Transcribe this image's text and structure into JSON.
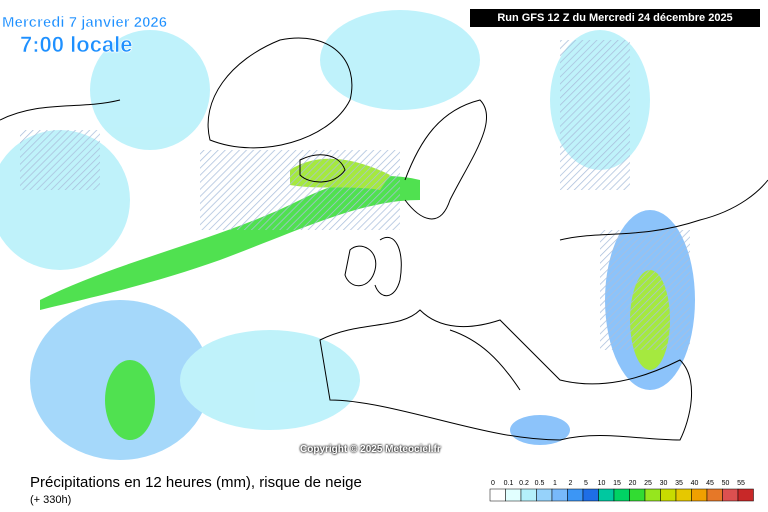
{
  "header": {
    "date": "Mercredi 7 janvier 2026",
    "time": "7:00 locale",
    "run": "Run GFS 12 Z du Mercredi 24 décembre 2025"
  },
  "copyright": "Copyright © 2025 Meteociel.fr",
  "footer": {
    "title": "Précipitations en 12 heures (mm), risque de neige",
    "lead": "(+ 330h)"
  },
  "legend": {
    "labels": [
      "0",
      "0.1",
      "0.2",
      "0.5",
      "1",
      "2",
      "5",
      "10",
      "15",
      "20",
      "25",
      "30",
      "35",
      "40",
      "45",
      "50",
      "55"
    ],
    "colors": [
      "#ffffff",
      "#e1ffff",
      "#b4f0fa",
      "#96d2fa",
      "#78b9fa",
      "#3c96f5",
      "#1e6ee6",
      "#00c8a0",
      "#00d264",
      "#32dc32",
      "#96e61e",
      "#c8dc00",
      "#e6c800",
      "#f0a000",
      "#e67828",
      "#dc5050",
      "#c82828"
    ]
  }
}
